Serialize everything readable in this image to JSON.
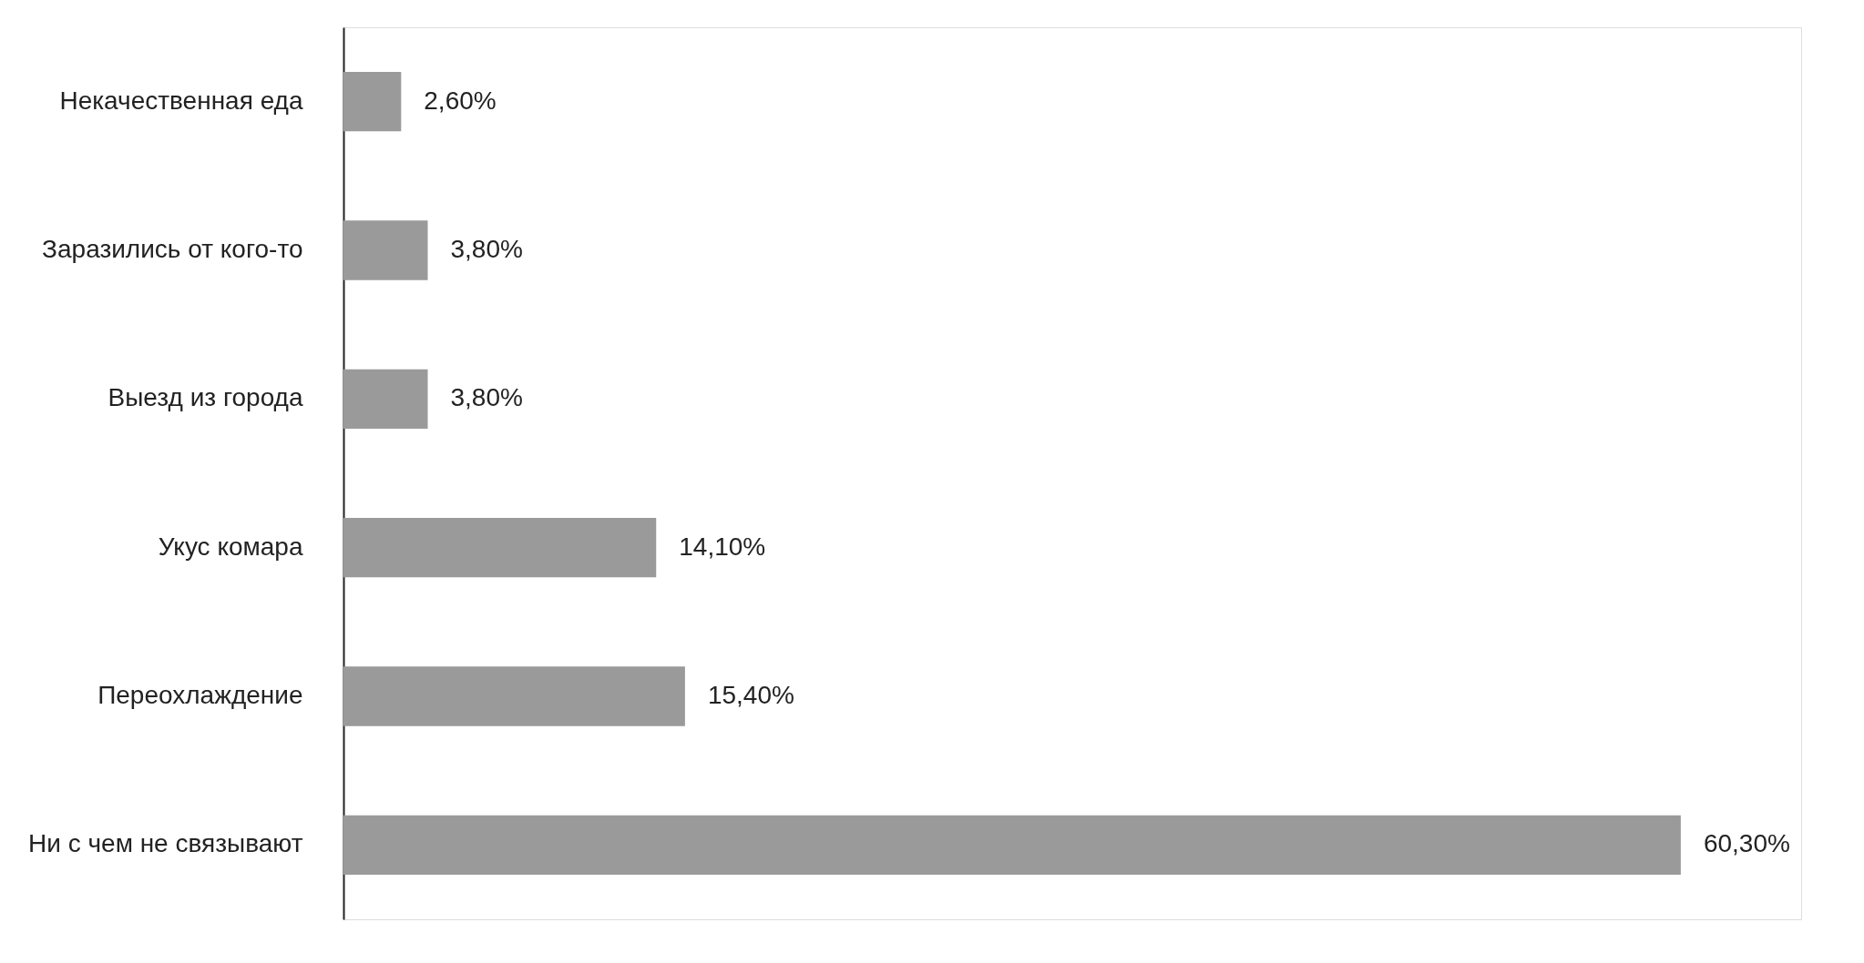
{
  "chart_data": {
    "type": "bar",
    "orientation": "horizontal",
    "categories": [
      "Некачественная еда",
      "Заразились от кого-то",
      "Выезд из города",
      "Укус комара",
      "Переохлаждение",
      "Ни с чем не связывают"
    ],
    "values": [
      2.6,
      3.8,
      3.8,
      14.1,
      15.4,
      60.3
    ],
    "color": "#9b9a9a",
    "value_labels": [
      "2,60%",
      "3,80%",
      "3,80%",
      "14,10%",
      "15,40%",
      "60,30%"
    ],
    "tick_labels": "y"
  }
}
